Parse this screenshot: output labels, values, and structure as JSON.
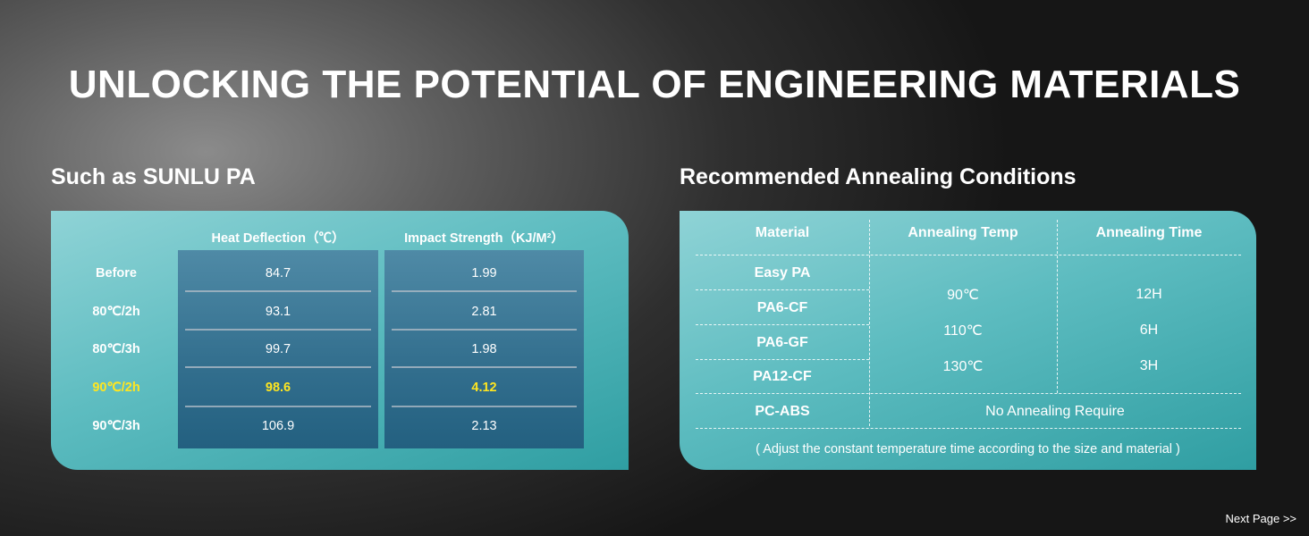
{
  "title": "UNLOCKING THE POTENTIAL OF ENGINEERING MATERIALS",
  "left": {
    "heading": "Such as SUNLU PA",
    "headers": [
      "Heat Deflection（℃）",
      "Impact Strength（KJ/M²）"
    ],
    "rows": [
      {
        "label": "Before",
        "heat": "84.7",
        "impact": "1.99"
      },
      {
        "label": "80℃/2h",
        "heat": "93.1",
        "impact": "2.81"
      },
      {
        "label": "80℃/3h",
        "heat": "99.7",
        "impact": "1.98"
      },
      {
        "label": "90℃/2h",
        "heat": "98.6",
        "impact": "4.12"
      },
      {
        "label": "90℃/3h",
        "heat": "106.9",
        "impact": "2.13"
      }
    ],
    "highlight_color": "#ffe620"
  },
  "right": {
    "heading": "Recommended Annealing Conditions",
    "headers": [
      "Material",
      "Annealing Temp",
      "Annealing Time"
    ],
    "materials": [
      "Easy PA",
      "PA6-CF",
      "PA6-GF",
      "PA12-CF",
      "PC-ABS"
    ],
    "temps": [
      "90℃",
      "110℃",
      "130℃"
    ],
    "times": [
      "12H",
      "6H",
      "3H"
    ],
    "no_annealing": "No Annealing Require",
    "note": "( Adjust the constant temperature time according to the size and material )"
  },
  "next_page": "Next Page >>",
  "colors": {
    "panel_light": "#8fd3d6",
    "panel_dark": "#2f9ea2",
    "cell_dark": "#236080"
  }
}
